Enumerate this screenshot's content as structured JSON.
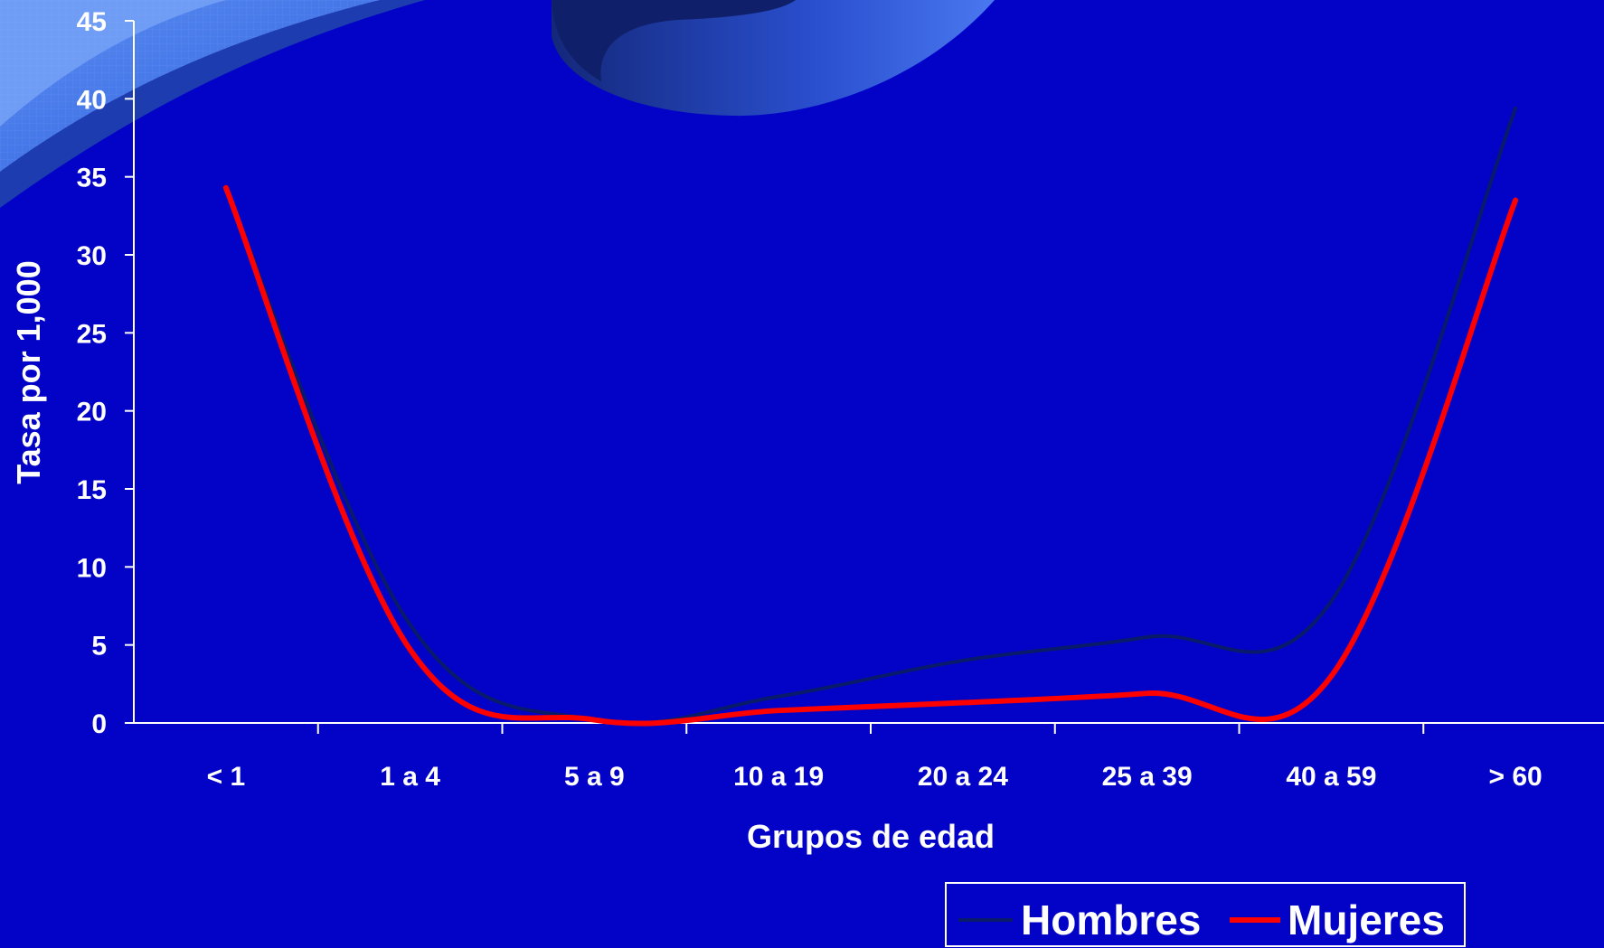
{
  "colors": {
    "background": "#0303c8",
    "axis": "#ffffff",
    "text": "#ffffff"
  },
  "chart_data": {
    "type": "line",
    "title": "",
    "xlabel": "Grupos de edad",
    "ylabel": "Tasa por 1,000",
    "categories": [
      "< 1",
      "1 a 4",
      "5 a 9",
      "10 a 19",
      "20 a 24",
      "25 a 39",
      "40 a 59",
      "> 60"
    ],
    "ylim": [
      0,
      45
    ],
    "yticks": [
      "0",
      "5",
      "10",
      "15",
      "20",
      "25",
      "30",
      "35",
      "40",
      "45"
    ],
    "grid": false,
    "legend_position": "bottom-right",
    "smooth": true,
    "series": [
      {
        "name": "Hombres",
        "color": "#0a1a6b",
        "values": [
          34.3,
          6.3,
          0.2,
          1.7,
          4.0,
          5.5,
          7.8,
          39.4
        ]
      },
      {
        "name": "Mujeres",
        "color": "#ff0000",
        "values": [
          34.3,
          4.7,
          0.2,
          0.8,
          1.3,
          1.9,
          3.0,
          33.5
        ]
      }
    ]
  }
}
